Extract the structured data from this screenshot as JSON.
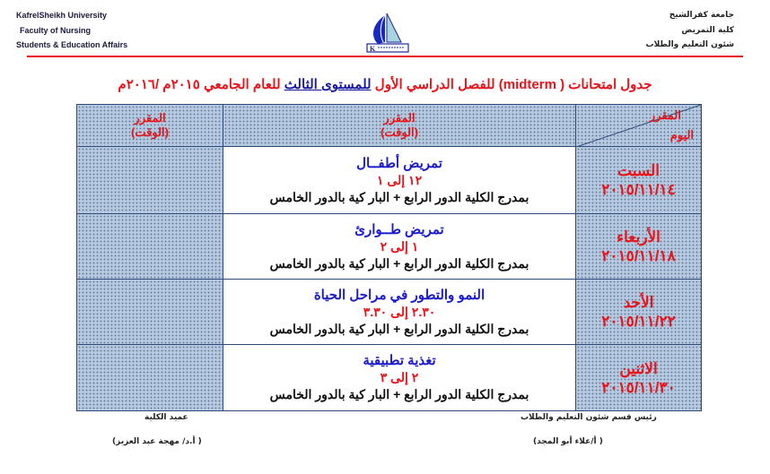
{
  "header": {
    "left": [
      "KafrelSheikh  University",
      "Faculty of Nursing",
      "Students & Education Affairs"
    ],
    "right": [
      "جامعة كفرالشيخ",
      "كلية التمريض",
      "شئون التعليم والطلاب"
    ]
  },
  "title": {
    "part1": "جدول امتحانات ( midterm) للفصل الدراسي الأول ",
    "level": "للمستوى الثالث",
    "part2": " للعام الجامعي ٢٠١٥م /٢٠١٦م"
  },
  "table": {
    "corner_top": "المقرر",
    "corner_bottom": "اليوم",
    "col_header_line1": "المقرر",
    "col_header_line2": "(الوقت)",
    "rows": [
      {
        "day": "السبت",
        "date": "٢٠١٥/١١/١٤",
        "course": "تمريض أطفــال",
        "time": "١٢ إلى ١",
        "place": "بمدرج الكلية الدور الرابع + البار كية بالدور الخامس"
      },
      {
        "day": "الأربعاء",
        "date": "٢٠١٥/١١/١٨",
        "course": "تمريض طــوارئ",
        "time": "١ إلى ٢",
        "place": "بمدرج الكلية الدور الرابع + البار كية بالدور الخامس"
      },
      {
        "day": "الأحد",
        "date": "٢٠١٥/١١/٢٢",
        "course": "النمو والتطور في مراحل الحياة",
        "time": "٢.٣٠ إلى ٣.٣٠",
        "place": "بمدرج الكلية الدور الرابع + البار كية بالدور الخامس"
      },
      {
        "day": "الاثنين",
        "date": "٢٠١٥/١١/٣٠",
        "course": "تغذية تطبيقية",
        "time": "٢ إلى ٣",
        "place": "بمدرج الكلية الدور الرابع + البار كية بالدور الخامس"
      }
    ]
  },
  "signatures": {
    "right_title": "رئيس قسم شئون التعليم والطلاب",
    "right_name": "( أ/علاء أبو المجد)",
    "left_title": "عميد الكلية",
    "left_name": "( أ.د/ مهجة عبد العزيز)"
  },
  "colors": {
    "accent_red": "#e8141a",
    "course_blue": "#1a1ad0",
    "cell_fill": "#b4c8e0"
  }
}
